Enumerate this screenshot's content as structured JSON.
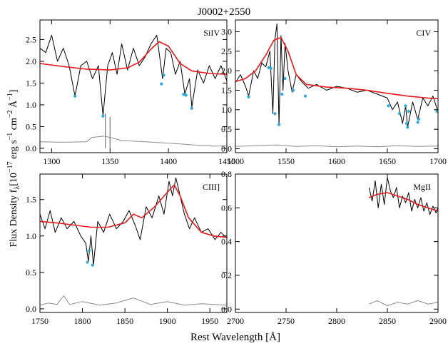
{
  "figure": {
    "title": "J0002+2550",
    "xlabel": "Rest Wavelength [Å]",
    "ylabel_main": "Flux Density f",
    "ylabel_sub": "λ",
    "ylabel_units": "[10",
    "ylabel_exp1": "−17",
    "ylabel_mid": " erg s",
    "ylabel_exp2": "−1",
    "ylabel_cm": " cm",
    "ylabel_exp3": "−2",
    "ylabel_ang": " Å",
    "ylabel_exp4": "−1",
    "ylabel_end": "]"
  },
  "colors": {
    "flux": "#000000",
    "fit": "#e8191b",
    "error": "#8a8a8a",
    "absorption_marker": "#29a9e0"
  },
  "chart_data": [
    {
      "type": "line",
      "label": "SiIV",
      "xlim": [
        1290,
        1450
      ],
      "ylim": [
        -0.1,
        2.95
      ],
      "xticks": [
        1300,
        1350,
        1400,
        1450
      ],
      "yticks": [
        0.0,
        0.5,
        1.0,
        1.5,
        2.0,
        2.5
      ],
      "ytick_labels": [
        "0.0",
        "0.5",
        "1.0",
        "1.5",
        "2.0",
        "2.5"
      ],
      "series": [
        {
          "role": "fit",
          "x": [
            1290,
            1310,
            1330,
            1350,
            1365,
            1375,
            1385,
            1392,
            1400,
            1410,
            1420,
            1435,
            1450
          ],
          "y": [
            1.95,
            1.88,
            1.82,
            1.8,
            1.85,
            1.98,
            2.28,
            2.45,
            2.35,
            1.95,
            1.78,
            1.72,
            1.7
          ]
        },
        {
          "role": "flux",
          "x": [
            1290,
            1295,
            1300,
            1305,
            1310,
            1315,
            1320,
            1325,
            1330,
            1335,
            1340,
            1344,
            1348,
            1352,
            1356,
            1360,
            1365,
            1370,
            1375,
            1380,
            1385,
            1390,
            1395,
            1398,
            1402,
            1406,
            1410,
            1414,
            1418,
            1420,
            1425,
            1430,
            1435,
            1440,
            1445,
            1450
          ],
          "y": [
            2.3,
            2.2,
            2.6,
            2.0,
            2.3,
            1.9,
            1.2,
            1.9,
            2.0,
            1.6,
            1.9,
            0.75,
            1.9,
            2.2,
            1.7,
            2.4,
            1.8,
            2.3,
            1.9,
            2.1,
            2.4,
            2.6,
            1.6,
            2.3,
            2.2,
            1.7,
            2.0,
            1.25,
            1.6,
            0.95,
            1.8,
            1.5,
            1.9,
            1.6,
            1.9,
            1.55
          ]
        },
        {
          "role": "error",
          "x": [
            1290,
            1310,
            1330,
            1334,
            1345,
            1350,
            1360,
            1380,
            1400,
            1420,
            1440,
            1450
          ],
          "y": [
            0.15,
            0.14,
            0.15,
            0.25,
            0.28,
            0.25,
            0.18,
            0.15,
            0.12,
            0.08,
            0.05,
            0.06
          ]
        },
        {
          "role": "error_spikes",
          "x": [
            1346,
            1350
          ],
          "y": [
            0.8,
            0.72
          ]
        },
        {
          "role": "absorption",
          "x": [
            1320,
            1344,
            1394,
            1396,
            1413,
            1415,
            1420
          ],
          "y": [
            1.2,
            0.74,
            1.48,
            1.68,
            1.24,
            1.22,
            0.92
          ]
        }
      ]
    },
    {
      "type": "line",
      "label": "CIV",
      "xlim": [
        1500,
        1700
      ],
      "ylim": [
        -0.1,
        3.3
      ],
      "xticks": [
        1500,
        1550,
        1600,
        1650,
        1700
      ],
      "yticks": [
        0.0,
        0.5,
        1.0,
        1.5,
        2.0,
        2.5,
        3.0
      ],
      "ytick_labels": [
        "0.0",
        "0.5",
        "1.0",
        "1.5",
        "2.0",
        "2.5",
        "3.0"
      ],
      "series": [
        {
          "role": "fit",
          "x": [
            1500,
            1510,
            1520,
            1530,
            1538,
            1545,
            1552,
            1560,
            1570,
            1590,
            1610,
            1630,
            1650,
            1670,
            1690,
            1700
          ],
          "y": [
            1.72,
            1.8,
            2.0,
            2.4,
            2.78,
            2.85,
            2.5,
            1.9,
            1.65,
            1.58,
            1.55,
            1.5,
            1.42,
            1.35,
            1.3,
            1.28
          ]
        },
        {
          "role": "flux",
          "x": [
            1500,
            1505,
            1510,
            1513,
            1518,
            1522,
            1526,
            1530,
            1534,
            1537,
            1539,
            1541,
            1543,
            1545,
            1547,
            1549,
            1552,
            1556,
            1560,
            1566,
            1572,
            1580,
            1590,
            1600,
            1610,
            1620,
            1630,
            1640,
            1650,
            1655,
            1660,
            1665,
            1668,
            1670,
            1675,
            1680,
            1685,
            1690,
            1695,
            1700
          ],
          "y": [
            1.7,
            1.9,
            1.6,
            1.35,
            2.0,
            1.8,
            2.2,
            2.1,
            2.5,
            0.9,
            2.8,
            3.2,
            0.6,
            2.9,
            1.5,
            2.7,
            2.0,
            1.45,
            1.9,
            1.7,
            1.55,
            1.65,
            1.5,
            1.6,
            1.55,
            1.45,
            1.5,
            1.4,
            1.3,
            1.0,
            1.2,
            0.65,
            1.1,
            0.55,
            1.2,
            0.75,
            1.3,
            1.1,
            1.35,
            0.95
          ]
        },
        {
          "role": "error",
          "x": [
            1500,
            1520,
            1540,
            1560,
            1580,
            1600,
            1620,
            1640,
            1660,
            1680,
            1700
          ],
          "y": [
            0.06,
            0.08,
            0.1,
            0.06,
            0.08,
            0.05,
            0.07,
            0.05,
            0.08,
            0.06,
            0.07
          ]
        },
        {
          "role": "absorption",
          "x": [
            1513,
            1533,
            1535,
            1539,
            1543,
            1546,
            1549,
            1557,
            1569,
            1651,
            1662,
            1668,
            1669,
            1670,
            1671,
            1680,
            1681,
            1699
          ],
          "y": [
            1.33,
            2.08,
            2.06,
            0.9,
            0.62,
            1.4,
            1.8,
            1.5,
            1.35,
            1.1,
            0.9,
            1.1,
            0.65,
            0.55,
            0.96,
            0.68,
            0.76,
            0.96
          ]
        }
      ]
    },
    {
      "type": "line",
      "label": "CIII]",
      "xlim": [
        1750,
        1970
      ],
      "ylim": [
        -0.05,
        1.85
      ],
      "xticks": [
        1750,
        1800,
        1850,
        1900,
        1950
      ],
      "yticks": [
        0.0,
        0.5,
        1.0,
        1.5
      ],
      "ytick_labels": [
        "0.0",
        "0.5",
        "1.0",
        "1.5"
      ],
      "series": [
        {
          "role": "fit",
          "x": [
            1750,
            1770,
            1790,
            1810,
            1830,
            1850,
            1860,
            1870,
            1885,
            1900,
            1908,
            1915,
            1925,
            1940,
            1955,
            1970
          ],
          "y": [
            1.2,
            1.18,
            1.15,
            1.12,
            1.12,
            1.18,
            1.3,
            1.25,
            1.4,
            1.6,
            1.7,
            1.55,
            1.25,
            1.05,
            1.0,
            0.98
          ]
        },
        {
          "role": "flux",
          "x": [
            1750,
            1756,
            1762,
            1768,
            1775,
            1782,
            1790,
            1798,
            1804,
            1807,
            1810,
            1813,
            1818,
            1825,
            1832,
            1840,
            1848,
            1855,
            1862,
            1868,
            1875,
            1882,
            1890,
            1896,
            1902,
            1906,
            1910,
            1914,
            1920,
            1926,
            1932,
            1940,
            1948,
            1956,
            1963,
            1970
          ],
          "y": [
            1.3,
            1.1,
            1.35,
            1.05,
            1.25,
            1.1,
            1.2,
            1.0,
            0.9,
            0.65,
            1.0,
            0.6,
            1.2,
            1.05,
            1.3,
            1.1,
            1.2,
            1.35,
            1.15,
            0.95,
            1.4,
            1.25,
            1.55,
            1.3,
            1.75,
            1.55,
            1.8,
            1.6,
            1.3,
            1.1,
            1.25,
            1.05,
            1.1,
            0.95,
            1.05,
            0.97
          ]
        },
        {
          "role": "error",
          "x": [
            1750,
            1760,
            1770,
            1778,
            1785,
            1800,
            1820,
            1840,
            1860,
            1880,
            1900,
            1920,
            1940,
            1970
          ],
          "y": [
            0.05,
            0.08,
            0.06,
            0.18,
            0.06,
            0.1,
            0.05,
            0.08,
            0.15,
            0.06,
            0.1,
            0.05,
            0.07,
            0.05
          ]
        },
        {
          "role": "absorption",
          "x": [
            1806,
            1808,
            1812
          ],
          "y": [
            0.64,
            0.8,
            0.6
          ]
        }
      ]
    },
    {
      "type": "line",
      "label": "MgII",
      "xlim": [
        2700,
        2900
      ],
      "ylim": [
        -0.02,
        0.8
      ],
      "xticks": [
        2700,
        2750,
        2800,
        2850,
        2900
      ],
      "yticks": [
        0.0,
        0.2,
        0.4,
        0.6,
        0.8
      ],
      "ytick_labels": [
        "0.0",
        "0.2",
        "0.4",
        "0.6",
        "0.8"
      ],
      "series": [
        {
          "role": "fit",
          "x": [
            2832,
            2840,
            2850,
            2860,
            2870,
            2880,
            2890,
            2900
          ],
          "y": [
            0.66,
            0.68,
            0.69,
            0.67,
            0.65,
            0.62,
            0.6,
            0.58
          ]
        },
        {
          "role": "flux",
          "x": [
            2832,
            2835,
            2838,
            2841,
            2844,
            2847,
            2850,
            2853,
            2856,
            2859,
            2862,
            2865,
            2868,
            2871,
            2874,
            2877,
            2880,
            2883,
            2886,
            2889,
            2892,
            2895,
            2898,
            2900
          ],
          "y": [
            0.72,
            0.64,
            0.76,
            0.6,
            0.74,
            0.62,
            0.78,
            0.7,
            0.66,
            0.72,
            0.6,
            0.67,
            0.63,
            0.69,
            0.58,
            0.65,
            0.6,
            0.66,
            0.58,
            0.63,
            0.56,
            0.61,
            0.57,
            0.6
          ]
        },
        {
          "role": "error",
          "x": [
            2832,
            2840,
            2850,
            2860,
            2870,
            2880,
            2890,
            2900
          ],
          "y": [
            0.03,
            0.05,
            0.02,
            0.04,
            0.03,
            0.05,
            0.03,
            0.04
          ]
        }
      ]
    }
  ]
}
